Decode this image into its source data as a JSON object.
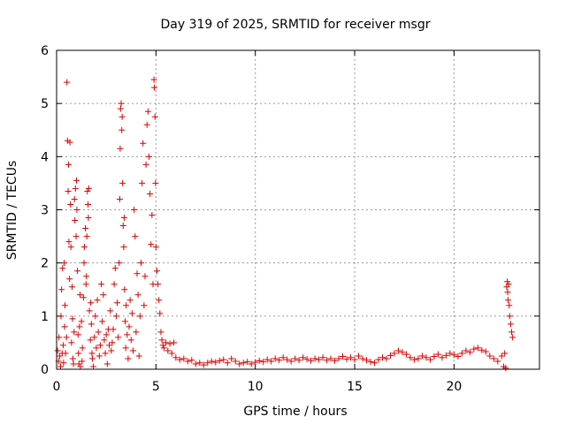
{
  "chart_data": {
    "type": "scatter",
    "title": "Day 319 of 2025, SRMTID for receiver msgr",
    "xlabel": "GPS time / hours",
    "ylabel": "SRMTID / TECUs",
    "xlim": [
      0,
      24.3
    ],
    "ylim": [
      0,
      6
    ],
    "xticks": [
      0,
      5,
      10,
      15,
      20
    ],
    "xtick_labels": [
      "0",
      "5",
      "10",
      "15",
      "20"
    ],
    "yticks": [
      0,
      1,
      2,
      3,
      4,
      5,
      6
    ],
    "ytick_labels": [
      "0",
      "1",
      "2",
      "3",
      "4",
      "5",
      "6"
    ],
    "grid": true,
    "marker": "+",
    "colors": {
      "series": "#dd0000",
      "grid": "#999999",
      "axis": "#000000"
    },
    "series": [
      {
        "name": "SRMTID",
        "points": [
          [
            0.05,
            0.35
          ],
          [
            0.1,
            0.15
          ],
          [
            0.12,
            0.6
          ],
          [
            0.15,
            0.25
          ],
          [
            0.2,
            0.05
          ],
          [
            0.22,
            1.0
          ],
          [
            0.25,
            1.5
          ],
          [
            0.28,
            0.3
          ],
          [
            0.3,
            1.9
          ],
          [
            0.33,
            0.45
          ],
          [
            0.35,
            0.12
          ],
          [
            0.38,
            2.0
          ],
          [
            0.4,
            0.8
          ],
          [
            0.42,
            1.2
          ],
          [
            0.45,
            0.3
          ],
          [
            0.5,
            0.6
          ],
          [
            0.52,
            5.4
          ],
          [
            0.55,
            4.3
          ],
          [
            0.58,
            3.35
          ],
          [
            0.6,
            3.85
          ],
          [
            0.62,
            2.4
          ],
          [
            0.65,
            1.7
          ],
          [
            0.67,
            4.27
          ],
          [
            0.7,
            3.1
          ],
          [
            0.72,
            2.3
          ],
          [
            0.75,
            0.5
          ],
          [
            0.78,
            1.55
          ],
          [
            0.8,
            0.95
          ],
          [
            0.82,
            0.2
          ],
          [
            0.85,
            0.1
          ],
          [
            0.88,
            0.7
          ],
          [
            0.9,
            3.2
          ],
          [
            0.92,
            2.8
          ],
          [
            0.95,
            3.4
          ],
          [
            0.98,
            2.5
          ],
          [
            1.0,
            3.55
          ],
          [
            1.02,
            3.0
          ],
          [
            1.05,
            1.85
          ],
          [
            1.08,
            0.65
          ],
          [
            1.1,
            0.3
          ],
          [
            1.12,
            0.1
          ],
          [
            1.15,
            0.8
          ],
          [
            1.18,
            1.4
          ],
          [
            1.2,
            0.05
          ],
          [
            1.25,
            0.9
          ],
          [
            1.28,
            0.15
          ],
          [
            1.3,
            0.4
          ],
          [
            1.35,
            1.35
          ],
          [
            1.38,
            2.0
          ],
          [
            1.4,
            2.3
          ],
          [
            1.45,
            2.65
          ],
          [
            1.48,
            1.6
          ],
          [
            1.5,
            1.75
          ],
          [
            1.52,
            2.5
          ],
          [
            1.55,
            3.35
          ],
          [
            1.58,
            3.1
          ],
          [
            1.6,
            2.85
          ],
          [
            1.62,
            3.4
          ],
          [
            1.65,
            1.1
          ],
          [
            1.7,
            0.55
          ],
          [
            1.72,
            1.25
          ],
          [
            1.75,
            0.85
          ],
          [
            1.78,
            0.3
          ],
          [
            1.8,
            0.2
          ],
          [
            1.85,
            0.05
          ],
          [
            1.9,
            0.6
          ],
          [
            1.95,
            1.0
          ],
          [
            2.0,
            0.4
          ],
          [
            2.05,
            1.3
          ],
          [
            2.1,
            0.7
          ],
          [
            2.15,
            0.25
          ],
          [
            2.2,
            0.45
          ],
          [
            2.25,
            1.6
          ],
          [
            2.3,
            0.9
          ],
          [
            2.35,
            1.4
          ],
          [
            2.4,
            0.55
          ],
          [
            2.45,
            0.3
          ],
          [
            2.5,
            0.65
          ],
          [
            2.55,
            0.1
          ],
          [
            2.6,
            0.75
          ],
          [
            2.65,
            0.45
          ],
          [
            2.7,
            1.1
          ],
          [
            2.75,
            0.35
          ],
          [
            2.8,
            0.5
          ],
          [
            2.85,
            0.75
          ],
          [
            2.9,
            1.6
          ],
          [
            2.95,
            1.9
          ],
          [
            3.0,
            1.0
          ],
          [
            3.05,
            1.25
          ],
          [
            3.1,
            0.6
          ],
          [
            3.15,
            2.0
          ],
          [
            3.18,
            3.2
          ],
          [
            3.2,
            4.15
          ],
          [
            3.22,
            4.9
          ],
          [
            3.25,
            5.0
          ],
          [
            3.28,
            4.5
          ],
          [
            3.3,
            4.75
          ],
          [
            3.32,
            3.5
          ],
          [
            3.35,
            2.7
          ],
          [
            3.38,
            2.3
          ],
          [
            3.4,
            2.85
          ],
          [
            3.42,
            1.5
          ],
          [
            3.45,
            0.9
          ],
          [
            3.48,
            0.4
          ],
          [
            3.5,
            1.2
          ],
          [
            3.55,
            0.65
          ],
          [
            3.6,
            0.2
          ],
          [
            3.65,
            0.8
          ],
          [
            3.7,
            1.3
          ],
          [
            3.75,
            0.55
          ],
          [
            3.8,
            1.05
          ],
          [
            3.85,
            0.35
          ],
          [
            3.9,
            3.0
          ],
          [
            3.95,
            2.5
          ],
          [
            4.0,
            0.7
          ],
          [
            4.05,
            1.8
          ],
          [
            4.1,
            1.4
          ],
          [
            4.15,
            0.25
          ],
          [
            4.2,
            1.0
          ],
          [
            4.25,
            2.0
          ],
          [
            4.3,
            3.5
          ],
          [
            4.35,
            4.25
          ],
          [
            4.4,
            1.2
          ],
          [
            4.45,
            1.75
          ],
          [
            4.5,
            3.85
          ],
          [
            4.55,
            4.6
          ],
          [
            4.6,
            4.85
          ],
          [
            4.65,
            4.0
          ],
          [
            4.7,
            3.3
          ],
          [
            4.75,
            2.35
          ],
          [
            4.8,
            2.9
          ],
          [
            4.85,
            1.6
          ],
          [
            4.9,
            5.45
          ],
          [
            4.92,
            5.3
          ],
          [
            4.95,
            4.75
          ],
          [
            4.98,
            3.5
          ],
          [
            5.0,
            2.3
          ],
          [
            5.05,
            1.85
          ],
          [
            5.1,
            1.6
          ],
          [
            5.15,
            1.3
          ],
          [
            5.2,
            1.05
          ],
          [
            5.25,
            0.7
          ],
          [
            5.3,
            0.55
          ],
          [
            5.35,
            0.45
          ],
          [
            5.4,
            0.4
          ],
          [
            5.5,
            0.5
          ],
          [
            5.6,
            0.35
          ],
          [
            5.7,
            0.48
          ],
          [
            5.8,
            0.3
          ],
          [
            5.9,
            0.5
          ],
          [
            6.0,
            0.22
          ],
          [
            6.2,
            0.18
          ],
          [
            6.4,
            0.2
          ],
          [
            6.6,
            0.15
          ],
          [
            6.8,
            0.17
          ],
          [
            7.0,
            0.1
          ],
          [
            7.2,
            0.12
          ],
          [
            7.4,
            0.08
          ],
          [
            7.6,
            0.12
          ],
          [
            7.8,
            0.15
          ],
          [
            8.0,
            0.13
          ],
          [
            8.2,
            0.16
          ],
          [
            8.4,
            0.18
          ],
          [
            8.6,
            0.12
          ],
          [
            8.8,
            0.2
          ],
          [
            9.0,
            0.15
          ],
          [
            9.2,
            0.1
          ],
          [
            9.4,
            0.12
          ],
          [
            9.6,
            0.14
          ],
          [
            9.8,
            0.1
          ],
          [
            10.0,
            0.13
          ],
          [
            10.2,
            0.16
          ],
          [
            10.4,
            0.14
          ],
          [
            10.6,
            0.18
          ],
          [
            10.8,
            0.15
          ],
          [
            11.0,
            0.2
          ],
          [
            11.2,
            0.17
          ],
          [
            11.4,
            0.22
          ],
          [
            11.6,
            0.18
          ],
          [
            11.8,
            0.15
          ],
          [
            12.0,
            0.2
          ],
          [
            12.2,
            0.17
          ],
          [
            12.4,
            0.22
          ],
          [
            12.6,
            0.19
          ],
          [
            12.8,
            0.16
          ],
          [
            13.0,
            0.2
          ],
          [
            13.2,
            0.18
          ],
          [
            13.4,
            0.22
          ],
          [
            13.6,
            0.17
          ],
          [
            13.8,
            0.2
          ],
          [
            14.0,
            0.16
          ],
          [
            14.2,
            0.2
          ],
          [
            14.4,
            0.24
          ],
          [
            14.6,
            0.19
          ],
          [
            14.8,
            0.22
          ],
          [
            15.0,
            0.18
          ],
          [
            15.2,
            0.25
          ],
          [
            15.4,
            0.2
          ],
          [
            15.6,
            0.17
          ],
          [
            15.8,
            0.14
          ],
          [
            16.0,
            0.12
          ],
          [
            16.2,
            0.18
          ],
          [
            16.4,
            0.22
          ],
          [
            16.6,
            0.2
          ],
          [
            16.8,
            0.26
          ],
          [
            17.0,
            0.3
          ],
          [
            17.2,
            0.35
          ],
          [
            17.4,
            0.32
          ],
          [
            17.6,
            0.28
          ],
          [
            17.8,
            0.22
          ],
          [
            18.0,
            0.18
          ],
          [
            18.2,
            0.2
          ],
          [
            18.4,
            0.25
          ],
          [
            18.6,
            0.22
          ],
          [
            18.8,
            0.18
          ],
          [
            19.0,
            0.24
          ],
          [
            19.2,
            0.28
          ],
          [
            19.4,
            0.22
          ],
          [
            19.6,
            0.26
          ],
          [
            19.8,
            0.3
          ],
          [
            20.0,
            0.27
          ],
          [
            20.2,
            0.24
          ],
          [
            20.4,
            0.3
          ],
          [
            20.6,
            0.35
          ],
          [
            20.8,
            0.32
          ],
          [
            21.0,
            0.38
          ],
          [
            21.2,
            0.4
          ],
          [
            21.4,
            0.36
          ],
          [
            21.6,
            0.33
          ],
          [
            21.8,
            0.25
          ],
          [
            22.0,
            0.2
          ],
          [
            22.2,
            0.15
          ],
          [
            22.4,
            0.25
          ],
          [
            22.5,
            0.05
          ],
          [
            22.55,
            0.3
          ],
          [
            22.6,
            0.02
          ],
          [
            22.65,
            1.55
          ],
          [
            22.68,
            1.65
          ],
          [
            22.7,
            1.45
          ],
          [
            22.72,
            1.3
          ],
          [
            22.75,
            1.6
          ],
          [
            22.78,
            1.2
          ],
          [
            22.8,
            1.0
          ],
          [
            22.85,
            0.85
          ],
          [
            22.9,
            0.7
          ],
          [
            22.95,
            0.6
          ]
        ]
      }
    ]
  }
}
